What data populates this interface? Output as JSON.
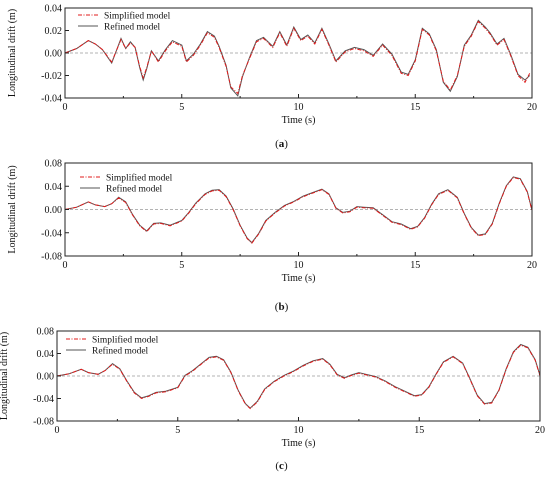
{
  "figure": {
    "panels": [
      "a",
      "b",
      "c"
    ],
    "captions": [
      "(a)",
      "(b)",
      "(c)"
    ]
  },
  "colors": {
    "simplified": "#e01b1b",
    "refined": "#555555",
    "zero_line": "#9a9a9a",
    "axes": "#222222"
  },
  "chart_data": [
    {
      "type": "line",
      "panel": "a",
      "caption": "(a)",
      "xlabel": "Time (s)",
      "ylabel": "Longitudinal drift (m)",
      "xlim": [
        0,
        20
      ],
      "ylim": [
        -0.04,
        0.04
      ],
      "xticks": [
        0,
        5,
        10,
        15,
        20
      ],
      "yticks": [
        -0.04,
        -0.02,
        0.0,
        0.02,
        0.04
      ],
      "xtick_labels": [
        "0",
        "5",
        "10",
        "15",
        "20"
      ],
      "ytick_labels": [
        "-0.04",
        "-0.02",
        "0.00",
        "0.02",
        "0.04"
      ],
      "legend_position": "top-left",
      "reference_line_y": 0,
      "series": [
        {
          "name": "Simplified model",
          "style": "dash-dot",
          "color": "#e01b1b",
          "x": [
            0,
            0.5,
            1.0,
            1.3,
            1.6,
            2.0,
            2.4,
            2.6,
            2.8,
            3.0,
            3.2,
            3.35,
            3.5,
            3.7,
            4.0,
            4.3,
            4.6,
            5.0,
            5.2,
            5.5,
            5.8,
            6.1,
            6.4,
            6.6,
            6.9,
            7.1,
            7.4,
            7.6,
            7.9,
            8.2,
            8.5,
            8.9,
            9.2,
            9.5,
            9.8,
            10.1,
            10.4,
            10.7,
            11.0,
            11.3,
            11.6,
            12.0,
            12.4,
            12.8,
            13.2,
            13.6,
            14.0,
            14.4,
            14.7,
            15.0,
            15.3,
            15.6,
            15.9,
            16.2,
            16.5,
            16.8,
            17.1,
            17.4,
            17.7,
            18.0,
            18.2,
            18.5,
            18.8,
            19.1,
            19.4,
            19.7,
            19.9
          ],
          "y": [
            0.0,
            0.004,
            0.011,
            0.008,
            0.003,
            -0.008,
            0.012,
            0.004,
            0.009,
            0.005,
            -0.012,
            -0.022,
            -0.013,
            0.002,
            -0.008,
            0.002,
            0.01,
            0.006,
            -0.008,
            -0.002,
            0.007,
            0.018,
            0.014,
            0.005,
            -0.012,
            -0.03,
            -0.036,
            -0.02,
            -0.005,
            0.01,
            0.013,
            0.005,
            0.018,
            0.006,
            0.022,
            0.011,
            0.015,
            0.008,
            0.021,
            0.007,
            -0.008,
            0.001,
            0.004,
            0.002,
            -0.003,
            0.007,
            -0.002,
            -0.018,
            -0.02,
            -0.007,
            0.021,
            0.016,
            0.002,
            -0.025,
            -0.033,
            -0.02,
            0.006,
            0.015,
            0.028,
            0.022,
            0.017,
            0.007,
            0.012,
            -0.003,
            -0.02,
            -0.026,
            -0.018
          ]
        },
        {
          "name": "Refined model",
          "style": "solid",
          "color": "#555555",
          "x": [
            0,
            0.5,
            1.0,
            1.3,
            1.6,
            2.0,
            2.4,
            2.6,
            2.8,
            3.0,
            3.2,
            3.35,
            3.5,
            3.7,
            4.0,
            4.3,
            4.6,
            5.0,
            5.2,
            5.5,
            5.8,
            6.1,
            6.4,
            6.6,
            6.9,
            7.1,
            7.4,
            7.6,
            7.9,
            8.2,
            8.5,
            8.9,
            9.2,
            9.5,
            9.8,
            10.1,
            10.4,
            10.7,
            11.0,
            11.3,
            11.6,
            12.0,
            12.4,
            12.8,
            13.2,
            13.6,
            14.0,
            14.4,
            14.7,
            15.0,
            15.3,
            15.6,
            15.9,
            16.2,
            16.5,
            16.8,
            17.1,
            17.4,
            17.7,
            18.0,
            18.2,
            18.5,
            18.8,
            19.1,
            19.4,
            19.7,
            19.9
          ],
          "y": [
            0.0,
            0.004,
            0.011,
            0.008,
            0.003,
            -0.009,
            0.013,
            0.004,
            0.01,
            0.005,
            -0.013,
            -0.024,
            -0.014,
            0.002,
            -0.007,
            0.003,
            0.011,
            0.007,
            -0.007,
            -0.001,
            0.008,
            0.019,
            0.015,
            0.006,
            -0.011,
            -0.031,
            -0.038,
            -0.021,
            -0.004,
            0.011,
            0.014,
            0.006,
            0.019,
            0.007,
            0.023,
            0.012,
            0.016,
            0.009,
            0.022,
            0.008,
            -0.007,
            0.002,
            0.005,
            0.003,
            -0.002,
            0.008,
            -0.001,
            -0.017,
            -0.019,
            -0.006,
            0.022,
            0.017,
            0.003,
            -0.026,
            -0.034,
            -0.021,
            0.007,
            0.016,
            0.029,
            0.023,
            0.018,
            0.008,
            0.013,
            -0.002,
            -0.019,
            -0.024,
            -0.02
          ]
        }
      ]
    },
    {
      "type": "line",
      "panel": "b",
      "caption": "(b)",
      "xlabel": "Time (s)",
      "ylabel": "Longitudinal drift (m)",
      "xlim": [
        0,
        20
      ],
      "ylim": [
        -0.08,
        0.08
      ],
      "xticks": [
        0,
        5,
        10,
        15,
        20
      ],
      "yticks": [
        -0.08,
        -0.04,
        0.0,
        0.04,
        0.08
      ],
      "xtick_labels": [
        "0",
        "5",
        "10",
        "15",
        "20"
      ],
      "ytick_labels": [
        "-0.08",
        "-0.04",
        "0.00",
        "0.04",
        "0.08"
      ],
      "legend_position": "top-left",
      "reference_line_y": 0,
      "series": [
        {
          "name": "Simplified model",
          "style": "dash-dot",
          "color": "#e01b1b",
          "x": [
            0,
            0.5,
            1.0,
            1.3,
            1.7,
            2.0,
            2.3,
            2.6,
            2.9,
            3.2,
            3.5,
            3.8,
            4.1,
            4.5,
            5.0,
            5.3,
            5.6,
            6.0,
            6.3,
            6.6,
            6.9,
            7.2,
            7.5,
            7.8,
            8.0,
            8.3,
            8.6,
            9.0,
            9.4,
            9.8,
            10.2,
            10.6,
            11.0,
            11.3,
            11.6,
            11.9,
            12.2,
            12.5,
            12.8,
            13.2,
            13.6,
            14.0,
            14.4,
            14.8,
            15.1,
            15.4,
            15.7,
            16.0,
            16.4,
            16.8,
            17.1,
            17.4,
            17.7,
            18.0,
            18.3,
            18.6,
            18.9,
            19.2,
            19.5,
            19.8,
            20.0
          ],
          "y": [
            0.0,
            0.004,
            0.013,
            0.008,
            0.005,
            0.01,
            0.02,
            0.012,
            -0.01,
            -0.028,
            -0.038,
            -0.025,
            -0.024,
            -0.028,
            -0.02,
            -0.006,
            0.01,
            0.026,
            0.032,
            0.033,
            0.022,
            0.0,
            -0.028,
            -0.05,
            -0.058,
            -0.042,
            -0.02,
            -0.006,
            0.006,
            0.013,
            0.022,
            0.028,
            0.034,
            0.026,
            0.002,
            -0.006,
            -0.004,
            0.004,
            0.003,
            0.002,
            -0.01,
            -0.022,
            -0.026,
            -0.034,
            -0.03,
            -0.015,
            0.008,
            0.026,
            0.033,
            0.02,
            -0.008,
            -0.032,
            -0.045,
            -0.043,
            -0.025,
            0.01,
            0.04,
            0.055,
            0.052,
            0.03,
            -0.002
          ]
        },
        {
          "name": "Refined model",
          "style": "solid",
          "color": "#555555",
          "x": [
            0,
            0.5,
            1.0,
            1.3,
            1.7,
            2.0,
            2.3,
            2.6,
            2.9,
            3.2,
            3.5,
            3.8,
            4.1,
            4.5,
            5.0,
            5.3,
            5.6,
            6.0,
            6.3,
            6.6,
            6.9,
            7.2,
            7.5,
            7.8,
            8.0,
            8.3,
            8.6,
            9.0,
            9.4,
            9.8,
            10.2,
            10.6,
            11.0,
            11.3,
            11.6,
            11.9,
            12.2,
            12.5,
            12.8,
            13.2,
            13.6,
            14.0,
            14.4,
            14.8,
            15.1,
            15.4,
            15.7,
            16.0,
            16.4,
            16.8,
            17.1,
            17.4,
            17.7,
            18.0,
            18.3,
            18.6,
            18.9,
            19.2,
            19.5,
            19.8,
            20.0
          ],
          "y": [
            0.0,
            0.004,
            0.013,
            0.008,
            0.005,
            0.01,
            0.021,
            0.013,
            -0.009,
            -0.027,
            -0.037,
            -0.024,
            -0.023,
            -0.027,
            -0.019,
            -0.005,
            0.011,
            0.027,
            0.033,
            0.034,
            0.023,
            0.001,
            -0.027,
            -0.049,
            -0.057,
            -0.041,
            -0.019,
            -0.005,
            0.007,
            0.014,
            0.023,
            0.029,
            0.035,
            0.027,
            0.003,
            -0.005,
            -0.003,
            0.005,
            0.004,
            0.003,
            -0.009,
            -0.021,
            -0.025,
            -0.033,
            -0.029,
            -0.014,
            0.009,
            0.027,
            0.034,
            0.021,
            -0.007,
            -0.031,
            -0.044,
            -0.042,
            -0.024,
            0.011,
            0.041,
            0.056,
            0.053,
            0.031,
            -0.001
          ]
        }
      ]
    },
    {
      "type": "line",
      "panel": "c",
      "caption": "(c)",
      "xlabel": "Time (s)",
      "ylabel": "Longitudinal drift (m)",
      "xlim": [
        0,
        20
      ],
      "ylim": [
        -0.08,
        0.08
      ],
      "xticks": [
        0,
        5,
        10,
        15,
        20
      ],
      "yticks": [
        -0.08,
        -0.04,
        0.0,
        0.04,
        0.08
      ],
      "xtick_labels": [
        "0",
        "5",
        "10",
        "15",
        "20"
      ],
      "ytick_labels": [
        "-0.08",
        "-0.04",
        "0.00",
        "0.04",
        "0.08"
      ],
      "legend_position": "top-left",
      "reference_line_y": 0,
      "series": [
        {
          "name": "Simplified model",
          "style": "dash-dot",
          "color": "#e01b1b",
          "x": [
            0,
            0.5,
            1.0,
            1.3,
            1.7,
            2.0,
            2.3,
            2.6,
            2.9,
            3.2,
            3.5,
            3.8,
            4.1,
            4.5,
            5.0,
            5.3,
            5.6,
            6.0,
            6.3,
            6.6,
            6.9,
            7.2,
            7.5,
            7.8,
            8.0,
            8.3,
            8.6,
            9.0,
            9.4,
            9.8,
            10.2,
            10.6,
            11.0,
            11.3,
            11.6,
            11.9,
            12.2,
            12.5,
            12.8,
            13.2,
            13.6,
            14.0,
            14.4,
            14.8,
            15.1,
            15.4,
            15.7,
            16.0,
            16.4,
            16.8,
            17.1,
            17.4,
            17.7,
            18.0,
            18.3,
            18.6,
            18.9,
            19.2,
            19.5,
            19.8,
            20.0
          ],
          "y": [
            0.0,
            0.004,
            0.012,
            0.006,
            0.003,
            0.01,
            0.021,
            0.012,
            -0.01,
            -0.03,
            -0.04,
            -0.036,
            -0.03,
            -0.028,
            -0.021,
            0.0,
            0.008,
            0.022,
            0.032,
            0.034,
            0.028,
            0.006,
            -0.026,
            -0.05,
            -0.058,
            -0.046,
            -0.024,
            -0.01,
            0.0,
            0.008,
            0.018,
            0.026,
            0.03,
            0.02,
            0.002,
            -0.004,
            0.001,
            0.005,
            0.002,
            -0.002,
            -0.01,
            -0.02,
            -0.028,
            -0.036,
            -0.034,
            -0.02,
            0.003,
            0.024,
            0.034,
            0.022,
            -0.006,
            -0.035,
            -0.05,
            -0.048,
            -0.026,
            0.012,
            0.042,
            0.055,
            0.05,
            0.028,
            0.0
          ]
        },
        {
          "name": "Refined model",
          "style": "solid",
          "color": "#555555",
          "x": [
            0,
            0.5,
            1.0,
            1.3,
            1.7,
            2.0,
            2.3,
            2.6,
            2.9,
            3.2,
            3.5,
            3.8,
            4.1,
            4.5,
            5.0,
            5.3,
            5.6,
            6.0,
            6.3,
            6.6,
            6.9,
            7.2,
            7.5,
            7.8,
            8.0,
            8.3,
            8.6,
            9.0,
            9.4,
            9.8,
            10.2,
            10.6,
            11.0,
            11.3,
            11.6,
            11.9,
            12.2,
            12.5,
            12.8,
            13.2,
            13.6,
            14.0,
            14.4,
            14.8,
            15.1,
            15.4,
            15.7,
            16.0,
            16.4,
            16.8,
            17.1,
            17.4,
            17.7,
            18.0,
            18.3,
            18.6,
            18.9,
            19.2,
            19.5,
            19.8,
            20.0
          ],
          "y": [
            0.0,
            0.004,
            0.012,
            0.006,
            0.003,
            0.01,
            0.022,
            0.013,
            -0.009,
            -0.029,
            -0.039,
            -0.035,
            -0.029,
            -0.027,
            -0.02,
            0.001,
            0.009,
            0.023,
            0.033,
            0.035,
            0.029,
            0.007,
            -0.025,
            -0.049,
            -0.057,
            -0.045,
            -0.023,
            -0.009,
            0.001,
            0.009,
            0.019,
            0.027,
            0.031,
            0.021,
            0.003,
            -0.003,
            0.002,
            0.006,
            0.003,
            -0.001,
            -0.009,
            -0.019,
            -0.027,
            -0.035,
            -0.033,
            -0.019,
            0.004,
            0.025,
            0.035,
            0.023,
            -0.005,
            -0.034,
            -0.049,
            -0.047,
            -0.025,
            0.013,
            0.043,
            0.056,
            0.051,
            0.029,
            0.001
          ]
        }
      ]
    }
  ]
}
